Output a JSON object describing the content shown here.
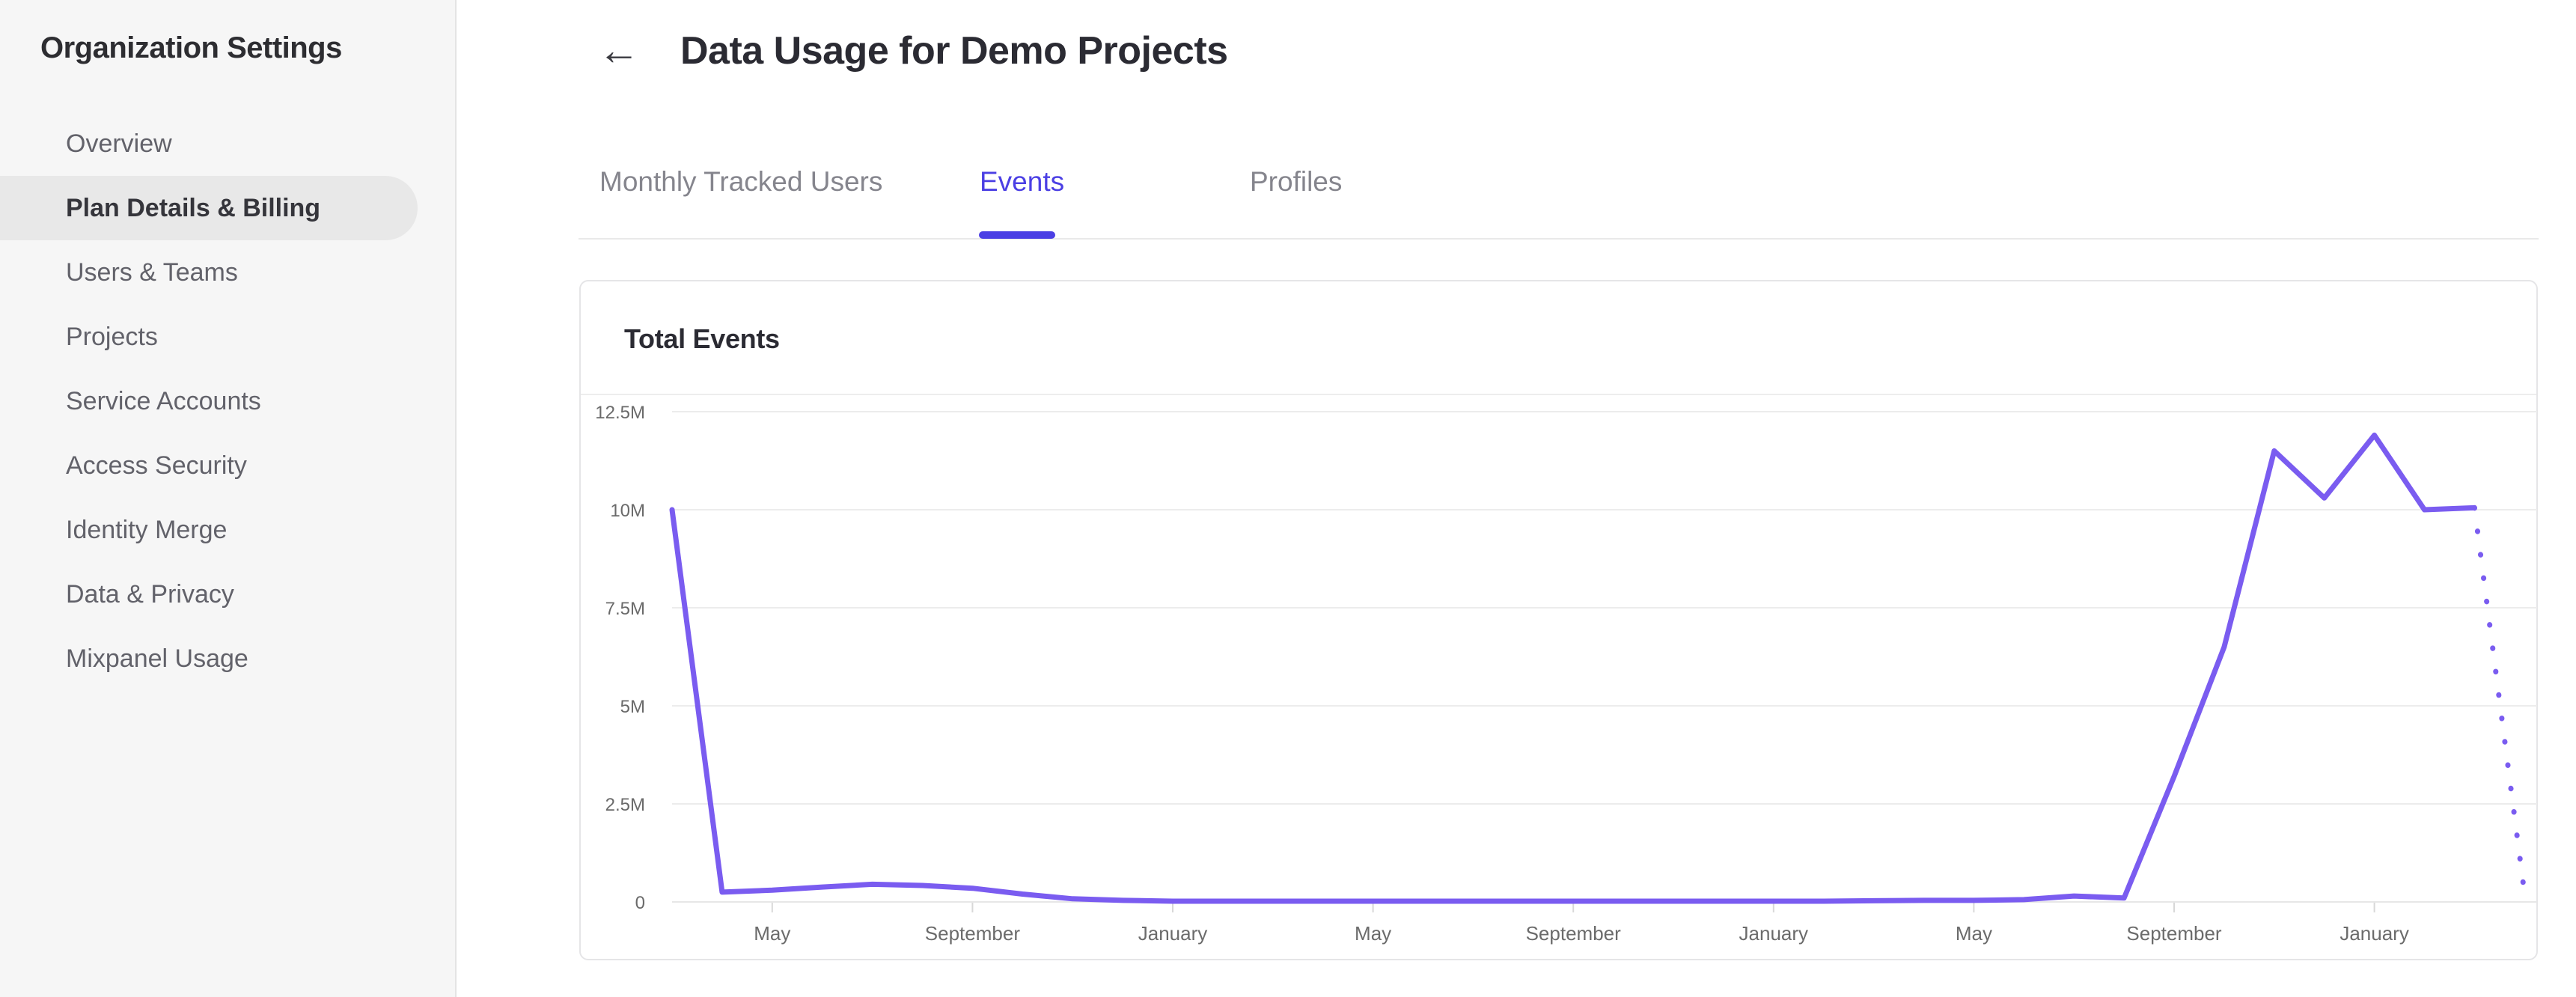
{
  "sidebar": {
    "title": "Organization Settings",
    "items": [
      {
        "label": "Overview",
        "active": false
      },
      {
        "label": "Plan Details & Billing",
        "active": true
      },
      {
        "label": "Users & Teams",
        "active": false
      },
      {
        "label": "Projects",
        "active": false
      },
      {
        "label": "Service Accounts",
        "active": false
      },
      {
        "label": "Access Security",
        "active": false
      },
      {
        "label": "Identity Merge",
        "active": false
      },
      {
        "label": "Data & Privacy",
        "active": false
      },
      {
        "label": "Mixpanel Usage",
        "active": false
      }
    ]
  },
  "header": {
    "title": "Data Usage for Demo Projects"
  },
  "icons": {
    "back_arrow": "←"
  },
  "tabs": [
    {
      "label": "Monthly Tracked Users",
      "active": false
    },
    {
      "label": "Events",
      "active": true
    },
    {
      "label": "Profiles",
      "active": false
    }
  ],
  "card": {
    "title": "Total Events"
  },
  "colors": {
    "accent": "#4b3fe4",
    "chart_line": "#7a5cf0",
    "gridline": "#ececec",
    "axis_line": "#e7e7e7",
    "tick_mark": "#d8d8d8",
    "y_label": "#6a6a6a",
    "x_label": "#6b6b6b"
  },
  "chart_data": {
    "type": "line",
    "title": "Total Events",
    "ylabel": "",
    "xlabel": "",
    "grid": "horizontal",
    "legend": "none",
    "y_range_millions": [
      0,
      12.5
    ],
    "y_tick_labels": [
      "12.5M",
      "10M",
      "7.5M",
      "5M",
      "2.5M",
      "0"
    ],
    "y_tick_values_millions": [
      12.5,
      10,
      7.5,
      5,
      2.5,
      0
    ],
    "x_start_month": "March (year 1)",
    "x_tick_labels": [
      "May",
      "September",
      "January",
      "May",
      "September",
      "January",
      "May",
      "September",
      "January"
    ],
    "x_tick_month_indices": [
      2,
      6,
      10,
      14,
      18,
      22,
      26,
      30,
      34
    ],
    "series": [
      {
        "name": "Total Events",
        "unit": "millions of events per month",
        "values_millions": [
          10,
          0.25,
          0.3,
          0.38,
          0.45,
          0.42,
          0.35,
          0.2,
          0.08,
          0.04,
          0.02,
          0.02,
          0.02,
          0.02,
          0.02,
          0.02,
          0.02,
          0.02,
          0.02,
          0.02,
          0.02,
          0.02,
          0.02,
          0.02,
          0.03,
          0.04,
          0.04,
          0.06,
          0.15,
          0.1,
          3.2,
          6.5,
          11.5,
          10.3,
          11.9,
          10.0,
          10.05,
          0.2
        ]
      }
    ],
    "last_segment_style": "dotted (projected / incomplete month)",
    "annotations": "Line starts at 10M, drops to near zero, stays flat ~2.5 years, spikes to ~11.9M peak near final January, ends with dotted projection falling to ~0.2M"
  }
}
